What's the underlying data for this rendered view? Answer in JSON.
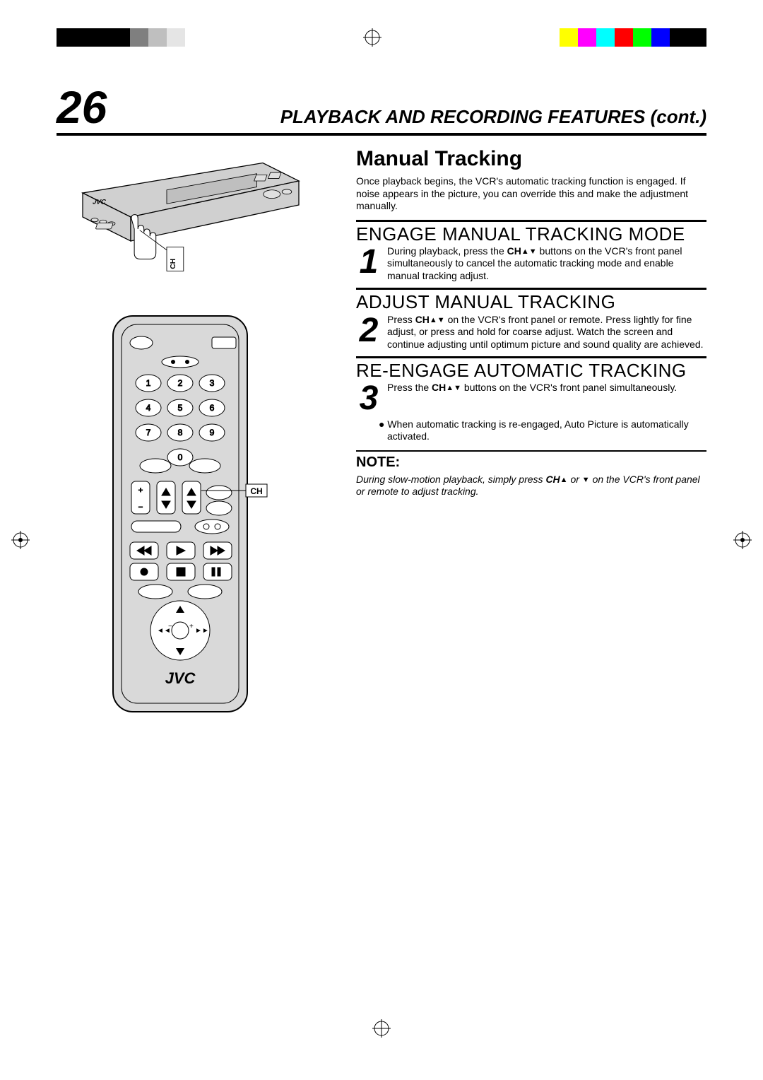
{
  "registration": {
    "left_swatches": [
      "#000000",
      "#000000",
      "#000000",
      "#000000",
      "#7f7f7f",
      "#bfbfbf",
      "#e5e5e5"
    ],
    "right_swatches": [
      "#ffff00",
      "#ff00ff",
      "#00ffff",
      "#ff0000",
      "#00ff00",
      "#0000ff",
      "#000000",
      "#000000"
    ]
  },
  "page_number": "26",
  "header_title": "PLAYBACK AND RECORDING FEATURES (cont.)",
  "section_title": "Manual Tracking",
  "intro": "Once playback begins, the VCR's automatic tracking function is engaged. If noise appears in the picture, you can override this and make the adjustment manually.",
  "steps": [
    {
      "num": "1",
      "heading": "ENGAGE MANUAL TRACKING MODE",
      "body_pre": "During playback, press the ",
      "body_bold": "CH",
      "body_post": " buttons on the VCR's front panel simultaneously to cancel the automatic tracking mode and enable manual tracking adjust."
    },
    {
      "num": "2",
      "heading": "ADJUST MANUAL TRACKING",
      "body_pre": "Press ",
      "body_bold": "CH",
      "body_post": " on the VCR's front panel or remote. Press lightly for fine adjust, or press and hold for coarse adjust. Watch the screen and continue adjusting until optimum picture and sound quality are achieved."
    },
    {
      "num": "3",
      "heading": "RE-ENGAGE AUTOMATIC TRACKING",
      "body_pre": "Press the ",
      "body_bold": "CH",
      "body_post": " buttons on the VCR's front panel simultaneously.",
      "bullet": "When automatic tracking is re-engaged, Auto Picture is automatically activated."
    }
  ],
  "note_heading": "NOTE:",
  "note_body_pre": "During slow-motion playback, simply press ",
  "note_body_bold": "CH",
  "note_body_post": " on the VCR's front panel or remote to adjust tracking.",
  "illus": {
    "vcr_label": "CH",
    "remote_label": "CH",
    "brand": "JVC",
    "vcr_fill": "#d0d0d0",
    "remote_fill": "#d9d9d9",
    "stroke": "#000000"
  },
  "typography": {
    "page_num_fontsize": 64,
    "header_title_fontsize": 26,
    "section_title_fontsize": 30,
    "step_heading_fontsize": 26,
    "body_fontsize": 14,
    "step_num_fontsize": 48,
    "note_heading_fontsize": 20
  },
  "colors": {
    "text": "#000000",
    "background": "#ffffff",
    "rule": "#000000"
  }
}
